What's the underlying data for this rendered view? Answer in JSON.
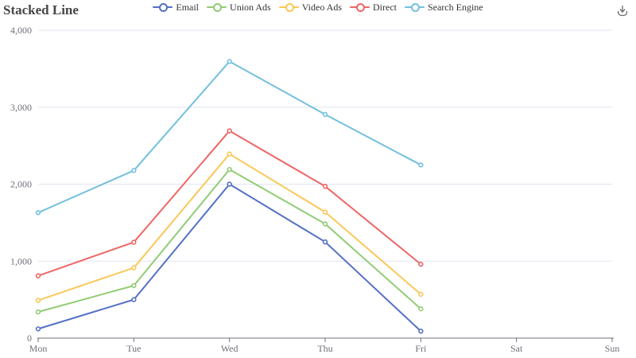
{
  "header": {
    "title": "Stacked Line"
  },
  "toolbox": {
    "icon": "download-icon",
    "tooltip": "Save as Image",
    "color": "#666666"
  },
  "legend": {
    "position": "top-center",
    "items": [
      {
        "label": "Email",
        "color": "#5470C6"
      },
      {
        "label": "Union Ads",
        "color": "#91CC75"
      },
      {
        "label": "Video Ads",
        "color": "#FAC858"
      },
      {
        "label": "Direct",
        "color": "#EE6666"
      },
      {
        "label": "Search Engine",
        "color": "#73C0DE"
      }
    ]
  },
  "chart_data": {
    "type": "line",
    "stacked": true,
    "title": "Stacked Line",
    "x": [
      "Mon",
      "Tue",
      "Wed",
      "Thu",
      "Fri",
      "Sat",
      "Sun"
    ],
    "x_with_data": [
      "Mon",
      "Tue",
      "Wed",
      "Thu",
      "Fri"
    ],
    "missing_x": [
      "Sat",
      "Sun"
    ],
    "xlabel": "",
    "ylabel": "",
    "ylim": [
      0,
      4000
    ],
    "y_ticks": [
      0,
      1000,
      2000,
      3000,
      4000
    ],
    "y_tick_labels": [
      "0",
      "1,000",
      "2,000",
      "3,000",
      "4,000"
    ],
    "grid": true,
    "legend_position": "top",
    "marker": "empty-circle",
    "series": [
      {
        "name": "Email",
        "color": "#5470C6",
        "values": [
          120,
          500,
          2000,
          1250,
          90
        ],
        "stacked_totals": [
          120,
          500,
          2000,
          1250,
          90
        ]
      },
      {
        "name": "Union Ads",
        "color": "#91CC75",
        "values": [
          220,
          182,
          191,
          234,
          290
        ],
        "stacked_totals": [
          340,
          682,
          2191,
          1484,
          380
        ]
      },
      {
        "name": "Video Ads",
        "color": "#FAC858",
        "values": [
          150,
          232,
          201,
          154,
          190
        ],
        "stacked_totals": [
          490,
          914,
          2392,
          1638,
          570
        ]
      },
      {
        "name": "Direct",
        "color": "#EE6666",
        "values": [
          320,
          332,
          301,
          334,
          390
        ],
        "stacked_totals": [
          810,
          1246,
          2693,
          1972,
          960
        ]
      },
      {
        "name": "Search Engine",
        "color": "#73C0DE",
        "values": [
          820,
          932,
          901,
          934,
          1290
        ],
        "stacked_totals": [
          1630,
          2178,
          3594,
          2906,
          2250
        ]
      }
    ],
    "axis_colors": {
      "axis_line": "#6E7079",
      "axis_label": "#6E7079",
      "grid_line": "#E0E6F1"
    }
  }
}
